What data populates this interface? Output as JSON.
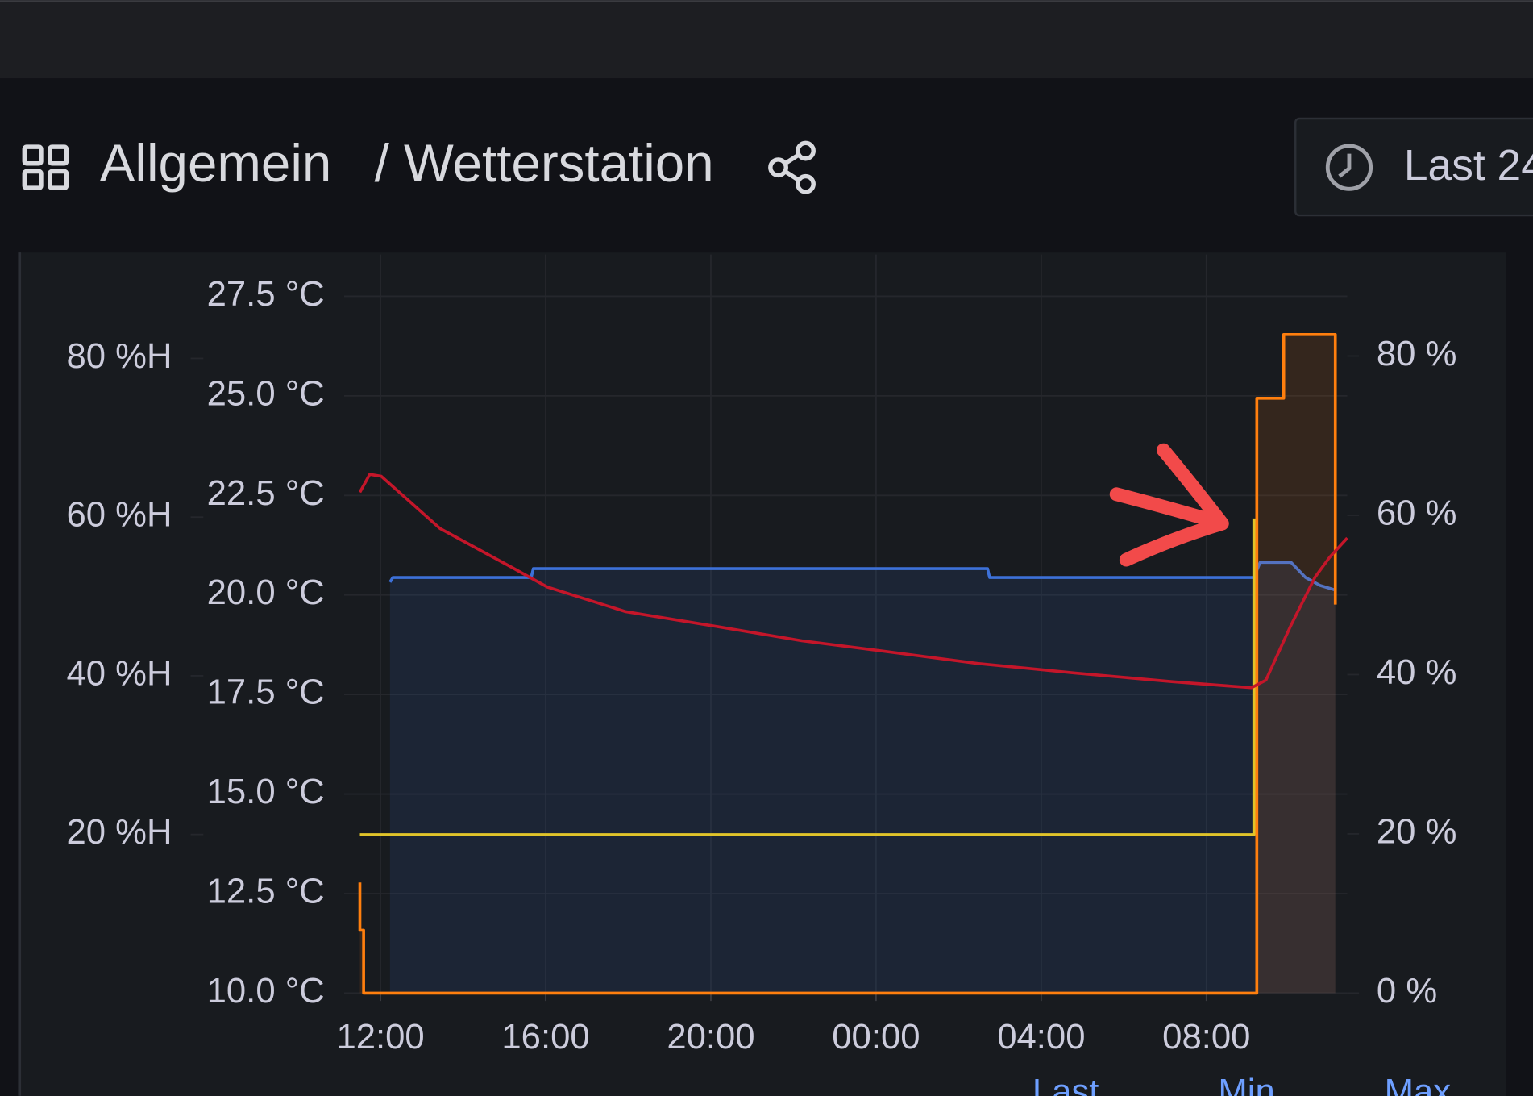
{
  "header": {
    "breadcrumb": "Allgemein",
    "title": "/ Wetterstation",
    "time_range": "Last 24"
  },
  "legend_columns": [
    "Last",
    "Min",
    "Max"
  ],
  "chart_data": {
    "type": "line",
    "xlim": [
      11.12,
      35.41
    ],
    "xticks": [
      {
        "value": 12,
        "label": "12:00"
      },
      {
        "value": 16,
        "label": "16:00"
      },
      {
        "value": 20,
        "label": "20:00"
      },
      {
        "value": 24,
        "label": "00:00"
      },
      {
        "value": 28,
        "label": "04:00"
      },
      {
        "value": 32,
        "label": "08:00"
      }
    ],
    "ylim": [
      10,
      28.55
    ],
    "yticks": [
      {
        "value": 10,
        "label": "10.0 °C"
      },
      {
        "value": 12.5,
        "label": "12.5 °C"
      },
      {
        "value": 15,
        "label": "15.0 °C"
      },
      {
        "value": 17.5,
        "label": "17.5 °C"
      },
      {
        "value": 20,
        "label": "20.0 °C"
      },
      {
        "value": 22.5,
        "label": "22.5 °C"
      },
      {
        "value": 25,
        "label": "25.0 °C"
      },
      {
        "value": 27.5,
        "label": "27.5 °C"
      }
    ],
    "y2lim": [
      0,
      93.1
    ],
    "y2ticks": [
      {
        "value": 20,
        "label": "20 %H"
      },
      {
        "value": 40,
        "label": "40 %H"
      },
      {
        "value": 60,
        "label": "60 %H"
      },
      {
        "value": 80,
        "label": "80 %H"
      }
    ],
    "y3lim": [
      0,
      92.75
    ],
    "y3ticks": [
      {
        "value": 0,
        "label": "0 %"
      },
      {
        "value": 20,
        "label": "20 %"
      },
      {
        "value": 40,
        "label": "40 %"
      },
      {
        "value": 60,
        "label": "60 %"
      },
      {
        "value": 80,
        "label": "80 %"
      }
    ],
    "grid": true,
    "series": [
      {
        "color": "#3d71d9",
        "axis": "y2",
        "fill": true,
        "x": [
          12.23,
          12.3,
          15.65,
          15.7,
          26.7,
          26.75,
          33.15,
          33.3,
          34.05,
          34.4,
          34.75,
          35.12
        ],
        "values": [
          51.8,
          52.4,
          52.4,
          53.5,
          53.5,
          52.4,
          52.4,
          54.3,
          54.3,
          52.4,
          51.4,
          50.8
        ]
      },
      {
        "color": "#ff7f0e",
        "axis": "y3",
        "fill": true,
        "x": [
          11.5,
          11.5,
          11.59,
          11.59,
          33.22,
          33.22,
          33.87,
          33.87,
          35.12,
          35.12
        ],
        "values": [
          13.9,
          7.9,
          7.9,
          0,
          0,
          74.7,
          74.7,
          82.7,
          82.7,
          48.8
        ]
      },
      {
        "color": "#e0c42a",
        "axis": "y3",
        "fill": false,
        "x": [
          11.5,
          33.15,
          33.15
        ],
        "values": [
          19.9,
          19.9,
          59.6
        ]
      },
      {
        "color": "#c4162a",
        "axis": "y",
        "fill": false,
        "x": [
          11.5,
          11.74,
          12.02,
          13.44,
          15.1,
          16.04,
          17.94,
          20.07,
          22.2,
          24.09,
          26.46,
          28.83,
          31.19,
          33.09,
          33.44,
          34.04,
          34.63,
          34.98,
          35.41
        ],
        "values": [
          22.58,
          23.03,
          22.98,
          21.67,
          20.74,
          20.2,
          19.58,
          19.22,
          18.85,
          18.6,
          18.28,
          18.04,
          17.82,
          17.67,
          17.86,
          19.22,
          20.45,
          20.94,
          21.43
        ]
      }
    ]
  }
}
